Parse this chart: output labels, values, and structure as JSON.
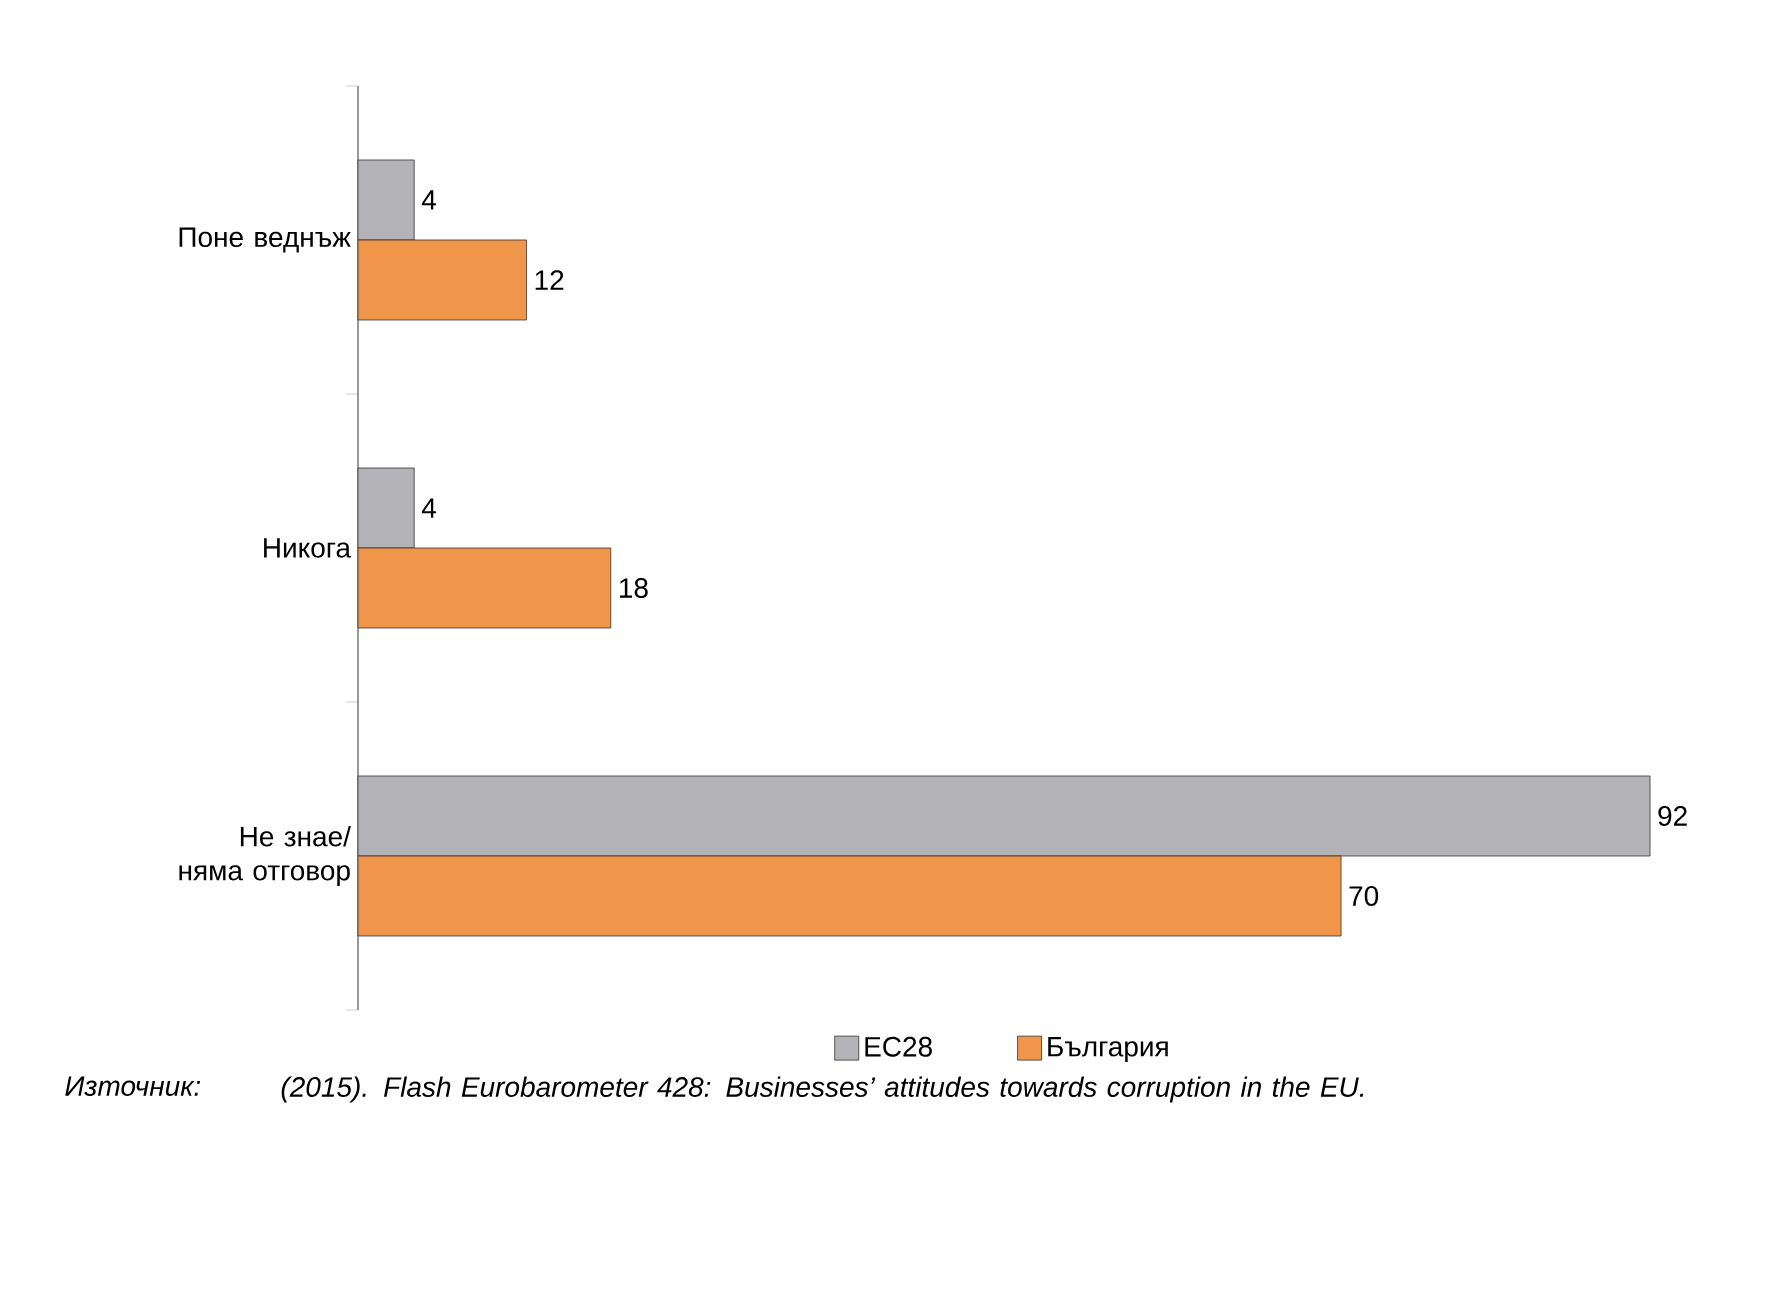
{
  "chart_data": {
    "type": "bar",
    "orientation": "horizontal",
    "categories": [
      "Поне веднъж",
      "Никога",
      "Не знае/ няма отговор"
    ],
    "series": [
      {
        "name": "ЕС28",
        "color": "#b4b4b8",
        "values": [
          4,
          4,
          92
        ]
      },
      {
        "name": "България",
        "color": "#f0964a",
        "values": [
          12,
          18,
          70
        ]
      }
    ],
    "data_labels": true,
    "legend": "bottom",
    "annotations": [
      "Източник:",
      "(2015). Flash Eurobarometer 428: Businesses’ attitudes towards corruption in the EU."
    ]
  }
}
